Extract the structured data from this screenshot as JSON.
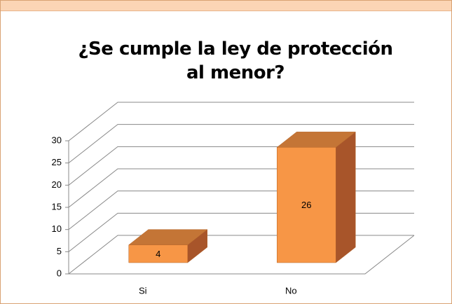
{
  "chart_data": {
    "type": "bar3d",
    "title": "¿Se cumple la ley de protección al menor?",
    "categories": [
      "Si",
      "No"
    ],
    "values": [
      4,
      26
    ],
    "color": "#f79646",
    "ylim": [
      0,
      30
    ],
    "yticks": [
      0,
      5,
      10,
      15,
      20,
      25,
      30
    ],
    "grid": true
  }
}
